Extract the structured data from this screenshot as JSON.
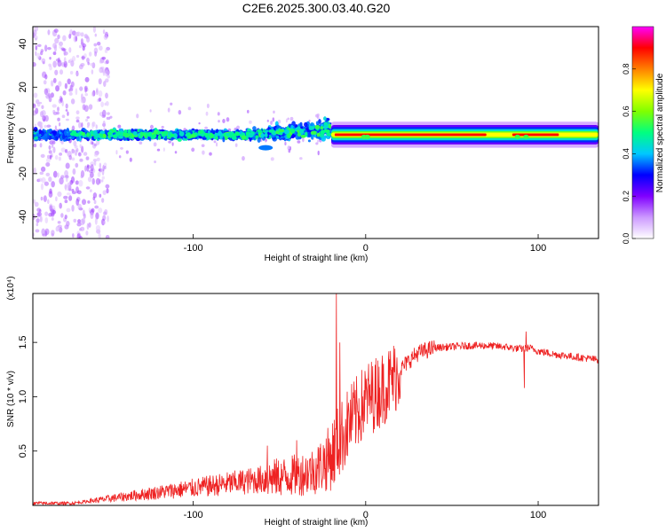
{
  "figure": {
    "title": "C2E6.2025.300.03.40.G20"
  },
  "chart_data": [
    {
      "type": "heatmap",
      "name": "spectrogram",
      "xlabel": "Height of straight line (km)",
      "ylabel": "Frequency (Hz)",
      "xlim": [
        -193,
        135
      ],
      "ylim": [
        -50,
        48
      ],
      "x_ticks": [
        -100,
        0,
        100
      ],
      "y_ticks": [
        -40,
        -20,
        0,
        20,
        40
      ],
      "x_tick_labels": [
        "-100",
        "0",
        "100"
      ],
      "y_tick_labels": [
        "-40",
        "-20",
        "0",
        "20",
        "40"
      ],
      "colorbar": {
        "label": "Normalized spectral amplitude",
        "range": [
          0,
          1
        ],
        "ticks": [
          0.0,
          0.2,
          0.4,
          0.6,
          0.8
        ],
        "tick_labels": [
          "0.0",
          "0.2",
          "0.4",
          "0.6",
          "0.8"
        ],
        "colors": [
          "#ffffff",
          "#cc99ff",
          "#8000ff",
          "#0000ff",
          "#00c8ff",
          "#00ff80",
          "#80ff00",
          "#ffff00",
          "#ff8000",
          "#ff0000",
          "#ff00ff"
        ]
      },
      "features": {
        "carrier_frequency_hz": -2,
        "noisy_region_km": [
          -193,
          -20
        ],
        "scintillation_broadening_km": [
          -193,
          -155
        ],
        "steady_carrier_km": [
          -20,
          135
        ],
        "peak_amplitude_segments_km": [
          [
            -18,
            70
          ],
          [
            85,
            112
          ]
        ]
      }
    },
    {
      "type": "line",
      "name": "snr",
      "xlabel": "Height of straight line (km)",
      "ylabel": "SNR (10 * v/v)",
      "yscale_label": "(x10⁴)",
      "xlim": [
        -193,
        135
      ],
      "ylim": [
        0,
        1.95
      ],
      "x_ticks": [
        -100,
        0,
        100
      ],
      "y_ticks": [
        0.5,
        1.0,
        1.5
      ],
      "x_tick_labels": [
        "-100",
        "0",
        "100"
      ],
      "y_tick_labels": [
        "0.5",
        "1.0",
        "1.5"
      ],
      "color": "#ee2222",
      "series": [
        {
          "name": "SNR",
          "x": [
            -193,
            -170,
            -160,
            -150,
            -140,
            -130,
            -120,
            -110,
            -100,
            -90,
            -80,
            -70,
            -60,
            -50,
            -40,
            -30,
            -25,
            -20,
            -17,
            -15,
            -12,
            -10,
            -5,
            0,
            5,
            10,
            15,
            20,
            25,
            30,
            40,
            50,
            60,
            70,
            80,
            90,
            95,
            100,
            110,
            120,
            135
          ],
          "y": [
            0.02,
            0.02,
            0.04,
            0.06,
            0.08,
            0.1,
            0.12,
            0.14,
            0.16,
            0.18,
            0.2,
            0.22,
            0.24,
            0.26,
            0.28,
            0.32,
            0.38,
            0.45,
            0.55,
            0.6,
            0.68,
            0.75,
            0.85,
            0.97,
            1.02,
            1.08,
            1.15,
            1.25,
            1.33,
            1.4,
            1.45,
            1.46,
            1.47,
            1.47,
            1.46,
            1.44,
            1.45,
            1.42,
            1.39,
            1.37,
            1.34
          ]
        }
      ],
      "spikes": [
        {
          "x": -17,
          "y": 1.95
        },
        {
          "x": -15,
          "y": 1.5
        },
        {
          "x": -40,
          "y": 0.6
        },
        {
          "x": -57,
          "y": 0.55
        },
        {
          "x": 93,
          "y": 1.6
        },
        {
          "x": 92,
          "y": 1.08
        }
      ]
    }
  ]
}
